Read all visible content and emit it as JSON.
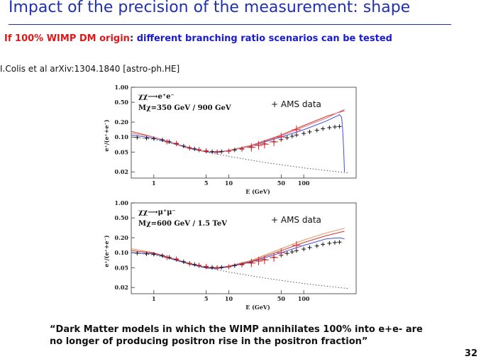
{
  "slide": {
    "title": "Impact of the precision of the measurement: shape",
    "subtitle_red": "If 100% WIMP DM origin",
    "subtitle_dark": ":",
    "subtitle_blue": "different branching ratio scenarios can be tested",
    "citation": "I.Colis et al arXiv:1304.1840 [astro-ph.HE]",
    "quote_line1": "“Dark Matter models in which the WIMP annihilates 100% into e+e- are",
    "quote_line2": "no longer of producing positron rise in the positron fraction”",
    "page_number": "32"
  },
  "chart_data": [
    {
      "type": "line",
      "channel_label": "χχ⟶e⁺e⁻",
      "mass_label": "Mχ=350 GeV / 900 GeV",
      "overlay_label": "+ AMS data",
      "xlabel": "E (GeV)",
      "ylabel": "e⁺/(e⁺+e⁻)",
      "xscale": "log",
      "yscale": "log",
      "xlim": [
        0.5,
        500
      ],
      "ylim": [
        0.015,
        1.0
      ],
      "xticks": [
        1,
        5,
        10,
        50,
        100
      ],
      "yticks": [
        0.02,
        0.05,
        0.1,
        0.2,
        0.5,
        1.0
      ],
      "ytick_labels": [
        "0.02",
        "0.05",
        "0.10",
        "0.20",
        "0.50",
        "1.00"
      ],
      "series": [
        {
          "color": "#555555",
          "style": "dotted",
          "x": [
            0.5,
            1,
            2,
            5,
            10,
            30,
            100,
            400
          ],
          "y": [
            0.1,
            0.09,
            0.072,
            0.05,
            0.041,
            0.031,
            0.024,
            0.019
          ]
        },
        {
          "color": "#d03030",
          "style": "solid",
          "x": [
            0.5,
            1,
            2,
            3,
            5,
            7,
            10,
            20,
            50,
            100,
            200,
            350
          ],
          "y": [
            0.13,
            0.1,
            0.073,
            0.06,
            0.051,
            0.05,
            0.054,
            0.068,
            0.11,
            0.17,
            0.26,
            0.34
          ]
        },
        {
          "color": "#4050e0",
          "style": "solid",
          "x": [
            0.5,
            1,
            2,
            3,
            5,
            7,
            10,
            20,
            50,
            100,
            200,
            300,
            320,
            330,
            340,
            350
          ],
          "y": [
            0.11,
            0.095,
            0.071,
            0.059,
            0.05,
            0.049,
            0.053,
            0.066,
            0.1,
            0.14,
            0.21,
            0.28,
            0.25,
            0.15,
            0.06,
            0.02
          ]
        },
        {
          "color": "#e08080",
          "style": "solid",
          "x": [
            0.5,
            1,
            2,
            5,
            10,
            20,
            50,
            100,
            200,
            350
          ],
          "y": [
            0.12,
            0.1,
            0.072,
            0.05,
            0.053,
            0.067,
            0.105,
            0.16,
            0.24,
            0.36
          ]
        }
      ],
      "data_black": {
        "x": [
          0.6,
          0.8,
          1,
          1.3,
          1.6,
          2,
          2.5,
          3,
          3.5,
          4,
          5,
          6,
          7,
          8,
          10,
          12,
          15,
          20,
          25,
          30,
          40,
          50,
          60,
          70,
          80,
          100,
          120,
          150,
          180,
          220,
          260,
          300
        ],
        "y": [
          0.098,
          0.095,
          0.093,
          0.088,
          0.081,
          0.073,
          0.066,
          0.061,
          0.058,
          0.055,
          0.052,
          0.051,
          0.05,
          0.051,
          0.052,
          0.055,
          0.058,
          0.063,
          0.068,
          0.073,
          0.081,
          0.089,
          0.097,
          0.104,
          0.11,
          0.118,
          0.127,
          0.137,
          0.147,
          0.155,
          0.16,
          0.163
        ]
      },
      "data_red": {
        "x": [
          1.5,
          2,
          3,
          4,
          5,
          7,
          10,
          15,
          20,
          25,
          30,
          40,
          50,
          80
        ],
        "y": [
          0.08,
          0.075,
          0.06,
          0.056,
          0.053,
          0.05,
          0.052,
          0.057,
          0.062,
          0.068,
          0.072,
          0.08,
          0.1,
          0.14
        ]
      }
    },
    {
      "type": "line",
      "channel_label": "χχ⟶μ⁺μ⁻",
      "mass_label": "Mχ=600 GeV / 1.5 TeV",
      "overlay_label": "+ AMS data",
      "xlabel": "E (GeV)",
      "ylabel": "e⁺/(e⁺+e⁻)",
      "xscale": "log",
      "yscale": "log",
      "xlim": [
        0.5,
        500
      ],
      "ylim": [
        0.015,
        1.0
      ],
      "xticks": [
        1,
        5,
        10,
        50,
        100
      ],
      "yticks": [
        0.02,
        0.05,
        0.1,
        0.2,
        0.5,
        1.0
      ],
      "ytick_labels": [
        "0.02",
        "0.05",
        "0.10",
        "0.20",
        "0.50",
        "1.00"
      ],
      "series": [
        {
          "color": "#555555",
          "style": "dotted",
          "x": [
            0.5,
            1,
            2,
            5,
            10,
            30,
            100,
            400
          ],
          "y": [
            0.1,
            0.09,
            0.072,
            0.05,
            0.041,
            0.031,
            0.024,
            0.019
          ]
        },
        {
          "color": "#e09050",
          "style": "solid",
          "x": [
            0.5,
            1,
            2,
            3,
            5,
            7,
            10,
            20,
            50,
            100,
            200,
            350
          ],
          "y": [
            0.12,
            0.1,
            0.073,
            0.061,
            0.051,
            0.05,
            0.054,
            0.07,
            0.12,
            0.18,
            0.25,
            0.31
          ]
        },
        {
          "color": "#d03030",
          "style": "solid",
          "x": [
            0.5,
            1,
            2,
            3,
            5,
            7,
            10,
            20,
            50,
            100,
            200,
            350
          ],
          "y": [
            0.11,
            0.098,
            0.072,
            0.06,
            0.05,
            0.049,
            0.053,
            0.067,
            0.11,
            0.16,
            0.22,
            0.27
          ]
        },
        {
          "color": "#4050e0",
          "style": "solid",
          "x": [
            0.5,
            1,
            2,
            3,
            5,
            7,
            10,
            20,
            50,
            100,
            200,
            300,
            350
          ],
          "y": [
            0.1,
            0.095,
            0.07,
            0.059,
            0.049,
            0.048,
            0.052,
            0.065,
            0.1,
            0.14,
            0.19,
            0.2,
            0.19
          ]
        }
      ],
      "data_black": {
        "x": [
          0.6,
          0.8,
          1,
          1.3,
          1.6,
          2,
          2.5,
          3,
          3.5,
          4,
          5,
          6,
          7,
          8,
          10,
          12,
          15,
          20,
          25,
          30,
          40,
          50,
          60,
          70,
          80,
          100,
          120,
          150,
          180,
          220,
          260,
          300
        ],
        "y": [
          0.098,
          0.095,
          0.093,
          0.088,
          0.081,
          0.073,
          0.066,
          0.061,
          0.058,
          0.055,
          0.052,
          0.051,
          0.05,
          0.051,
          0.052,
          0.055,
          0.058,
          0.063,
          0.068,
          0.073,
          0.081,
          0.089,
          0.097,
          0.104,
          0.11,
          0.118,
          0.127,
          0.137,
          0.147,
          0.155,
          0.16,
          0.163
        ]
      },
      "data_red": {
        "x": [
          1.5,
          2,
          3,
          4,
          5,
          7,
          10,
          15,
          20,
          25,
          30,
          40,
          50,
          80
        ],
        "y": [
          0.08,
          0.075,
          0.06,
          0.056,
          0.053,
          0.05,
          0.052,
          0.057,
          0.062,
          0.068,
          0.072,
          0.08,
          0.1,
          0.14
        ]
      }
    }
  ]
}
